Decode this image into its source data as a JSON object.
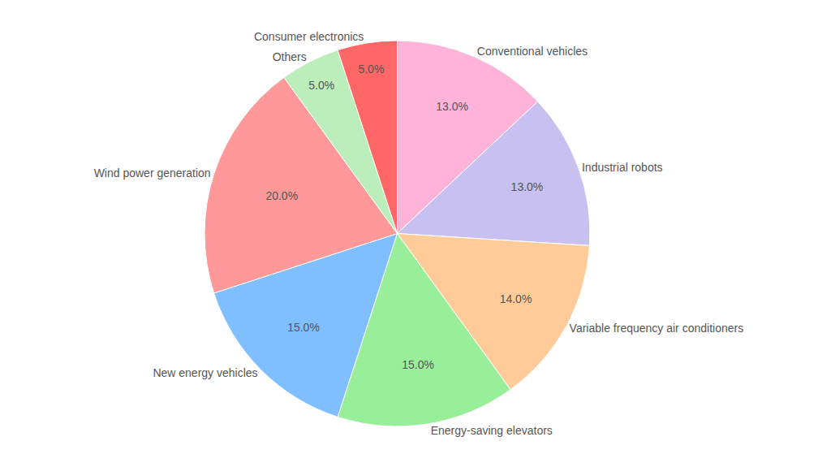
{
  "chart_data": {
    "type": "pie",
    "categories": [
      "Conventional vehicles",
      "Industrial robots",
      "Variable frequency air conditioners",
      "Energy-saving elevators",
      "New energy vehicles",
      "Wind power generation",
      "Others",
      "Consumer electronics"
    ],
    "values": [
      13.0,
      13.0,
      14.0,
      15.0,
      15.0,
      20.0,
      5.0,
      5.0
    ],
    "value_labels": [
      "13.0%",
      "13.0%",
      "14.0%",
      "15.0%",
      "15.0%",
      "20.0%",
      "5.0%",
      "5.0%"
    ],
    "colors": [
      "#FFB3D9",
      "#C8C0F0",
      "#FFCC99",
      "#99EE99",
      "#80BFFF",
      "#FF9999",
      "#BBEEBB",
      "#FF6666"
    ]
  }
}
